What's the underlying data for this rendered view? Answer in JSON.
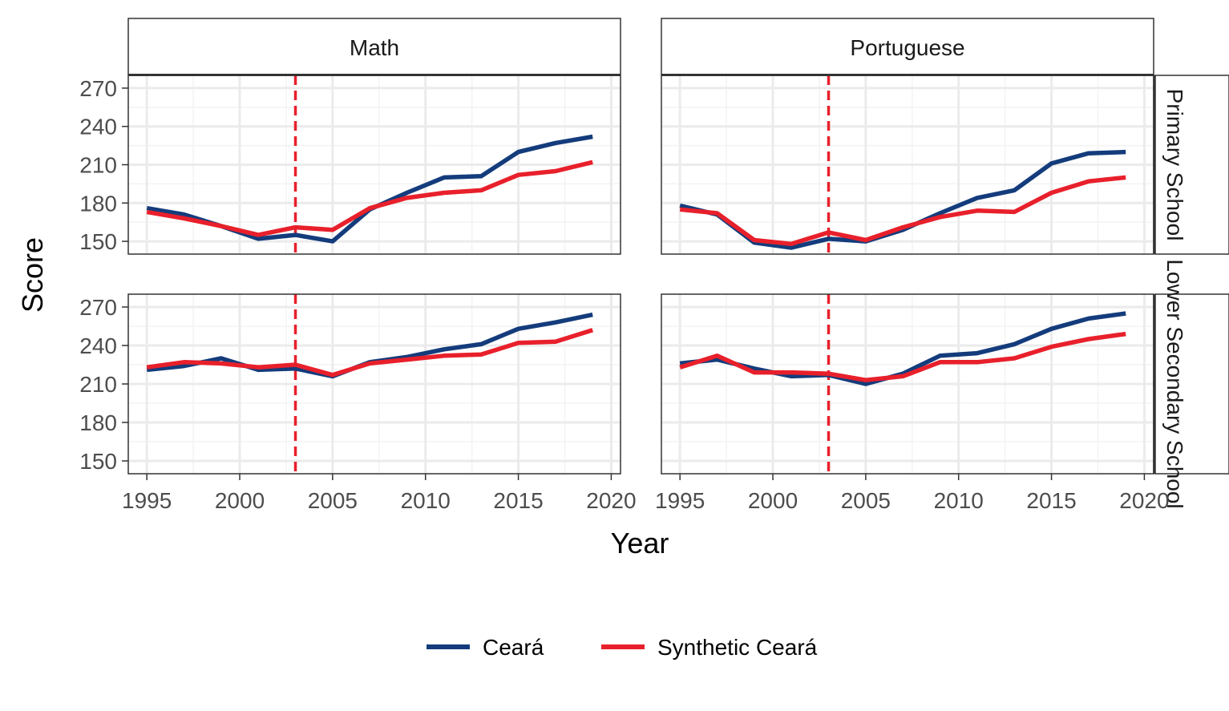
{
  "chart_data": {
    "type": "line",
    "xlabel": "Year",
    "ylabel": "Score",
    "xlim": [
      1994,
      2020.5
    ],
    "ylim": [
      140,
      280
    ],
    "x_ticks": [
      1995,
      2000,
      2005,
      2010,
      2015,
      2020
    ],
    "y_ticks": [
      150,
      180,
      210,
      240,
      270
    ],
    "x_tick_labels": [
      "1995",
      "2000",
      "2005",
      "2010",
      "2015",
      "2020"
    ],
    "y_tick_labels": [
      "150",
      "180",
      "210",
      "240",
      "270"
    ],
    "treatment_year": 2003,
    "colors": {
      "ceara": "#143c7c",
      "synthetic": "#e8202b",
      "treatment_line": "#e8202b"
    },
    "legend": {
      "position": "bottom",
      "entries": [
        {
          "label": "Ceará",
          "color": "#143c7c"
        },
        {
          "label": "Synthetic Ceará",
          "color": "#e8202b"
        }
      ]
    },
    "columns": [
      "Math",
      "Portuguese"
    ],
    "rows": [
      "Primary School",
      "Lower Secondary School"
    ],
    "x": [
      1995,
      1997,
      1999,
      2001,
      2003,
      2005,
      2007,
      2009,
      2011,
      2013,
      2015,
      2017,
      2019
    ],
    "panels": [
      {
        "column": "Math",
        "row": "Primary School",
        "series": [
          {
            "name": "Ceará",
            "values": [
              176,
              171,
              162,
              152,
              155,
              150,
              175,
              188,
              200,
              201,
              220,
              227,
              232
            ]
          },
          {
            "name": "Synthetic Ceará",
            "values": [
              173,
              168,
              162,
              155,
              161,
              159,
              176,
              184,
              188,
              190,
              202,
              205,
              212
            ]
          }
        ]
      },
      {
        "column": "Portuguese",
        "row": "Primary School",
        "series": [
          {
            "name": "Ceará",
            "values": [
              178,
              171,
              149,
              145,
              152,
              150,
              159,
              172,
              184,
              190,
              211,
              219,
              220
            ]
          },
          {
            "name": "Synthetic Ceará",
            "values": [
              175,
              172,
              151,
              148,
              157,
              151,
              161,
              169,
              174,
              173,
              188,
              197,
              200
            ]
          }
        ]
      },
      {
        "column": "Math",
        "row": "Lower Secondary School",
        "series": [
          {
            "name": "Ceará",
            "values": [
              221,
              224,
              230,
              221,
              222,
              216,
              227,
              231,
              237,
              241,
              253,
              258,
              264
            ]
          },
          {
            "name": "Synthetic Ceará",
            "values": [
              223,
              227,
              226,
              223,
              225,
              217,
              226,
              229,
              232,
              233,
              242,
              243,
              252
            ]
          }
        ]
      },
      {
        "column": "Portuguese",
        "row": "Lower Secondary School",
        "series": [
          {
            "name": "Ceará",
            "values": [
              226,
              229,
              222,
              216,
              217,
              210,
              218,
              232,
              234,
              241,
              253,
              261,
              265
            ]
          },
          {
            "name": "Synthetic Ceará",
            "values": [
              223,
              232,
              219,
              219,
              218,
              213,
              216,
              227,
              227,
              230,
              239,
              245,
              249
            ]
          }
        ]
      }
    ]
  }
}
